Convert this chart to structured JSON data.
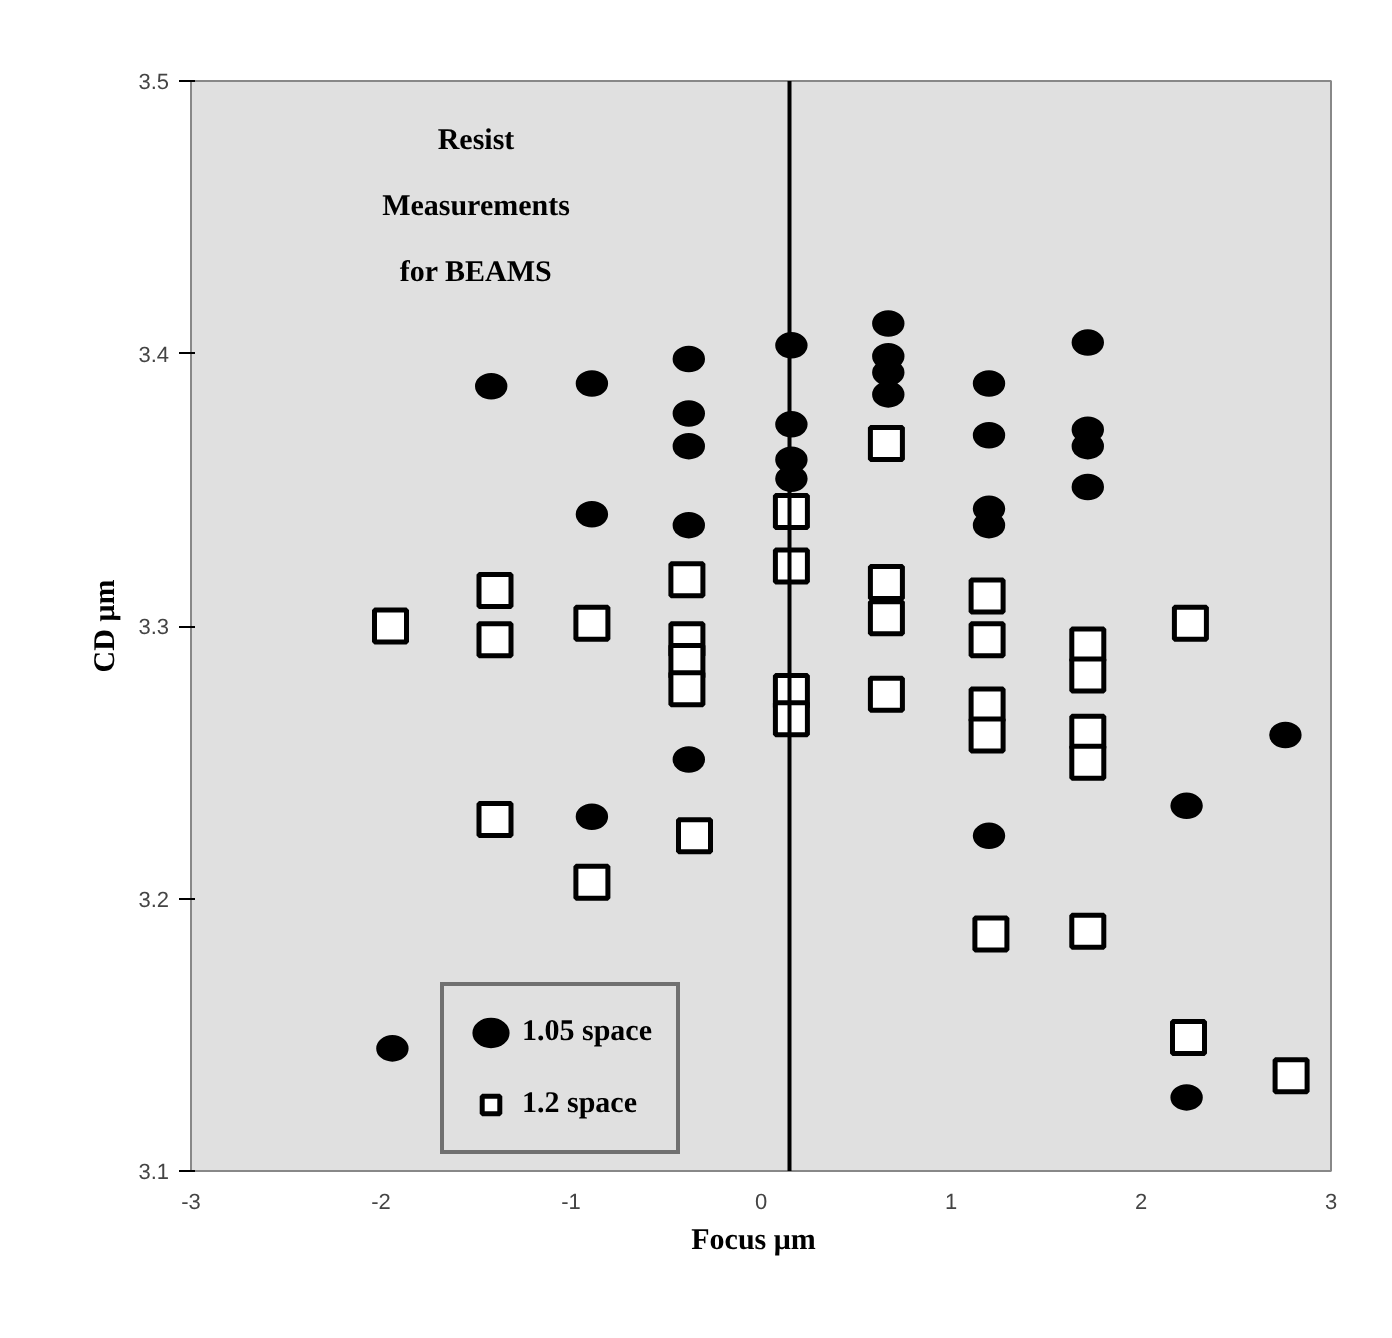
{
  "chart_data": {
    "type": "scatter",
    "title": "Resist Measurements for BEAMS",
    "xlabel": "Focus   μm",
    "ylabel": "CD μm",
    "xlim": [
      -3,
      3
    ],
    "ylim": [
      3.1,
      3.5
    ],
    "xticks": [
      -3,
      -2,
      -1,
      0,
      1,
      2,
      3
    ],
    "yticks": [
      3.1,
      3.2,
      3.3,
      3.4,
      3.5
    ],
    "grid": false,
    "legend": "bottom left",
    "ref_lines": [
      {
        "axis": "x",
        "value": 0.15,
        "color": "#000000"
      }
    ],
    "series": [
      {
        "name": "1.05 space",
        "color": "#000000",
        "marker": "circle",
        "x": [
          -1.42,
          -0.89,
          -0.89,
          -0.89,
          -0.38,
          -0.38,
          -0.38,
          -0.38,
          -0.38,
          -1.94,
          0.16,
          0.16,
          0.16,
          0.16,
          0.67,
          0.67,
          0.67,
          0.67,
          1.2,
          1.2,
          1.2,
          1.2,
          1.2,
          1.72,
          1.72,
          1.72,
          1.72,
          2.24,
          2.24,
          2.76
        ],
        "values": [
          3.388,
          3.389,
          3.341,
          3.23,
          3.398,
          3.378,
          3.366,
          3.337,
          3.251,
          3.145,
          3.403,
          3.374,
          3.361,
          3.354,
          3.411,
          3.399,
          3.393,
          3.385,
          3.389,
          3.37,
          3.343,
          3.337,
          3.223,
          3.404,
          3.372,
          3.366,
          3.351,
          3.234,
          3.127,
          3.26
        ]
      },
      {
        "name": "1.2 space",
        "color": "#000000",
        "marker": "square",
        "x": [
          -1.95,
          -1.4,
          -1.4,
          -1.4,
          -0.89,
          -0.89,
          -0.39,
          -0.39,
          -0.39,
          -0.39,
          -0.35,
          0.16,
          0.16,
          0.16,
          0.16,
          0.66,
          0.66,
          0.66,
          0.66,
          1.19,
          1.19,
          1.19,
          1.19,
          1.21,
          1.72,
          1.72,
          1.72,
          1.72,
          1.72,
          2.26,
          2.25,
          2.79
        ],
        "values": [
          3.3,
          3.313,
          3.295,
          3.229,
          3.301,
          3.206,
          3.317,
          3.295,
          3.287,
          3.277,
          3.223,
          3.342,
          3.322,
          3.276,
          3.266,
          3.367,
          3.316,
          3.303,
          3.275,
          3.311,
          3.295,
          3.271,
          3.26,
          3.187,
          3.293,
          3.282,
          3.261,
          3.25,
          3.188,
          3.301,
          3.149,
          3.135
        ]
      }
    ]
  }
}
